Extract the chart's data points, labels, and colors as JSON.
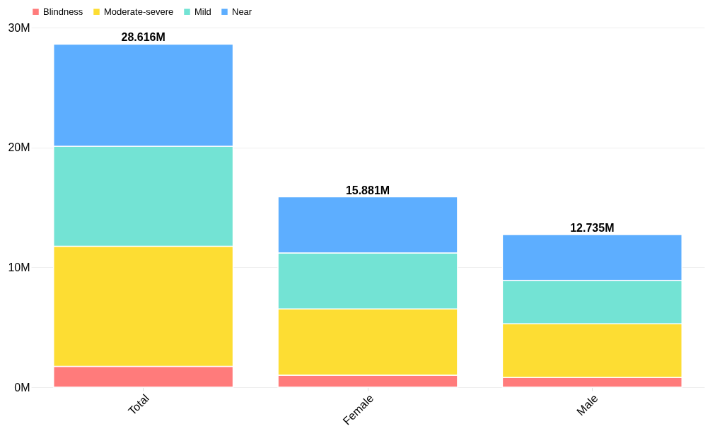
{
  "chart_data": {
    "type": "bar",
    "stacked": true,
    "categories": [
      "Total",
      "Female",
      "Male"
    ],
    "series": [
      {
        "name": "Blindness",
        "color": "#ff7b7b",
        "values": [
          1.74,
          1.0,
          0.81
        ]
      },
      {
        "name": "Moderate-severe",
        "color": "#fddd33",
        "values": [
          10.02,
          5.53,
          4.48
        ]
      },
      {
        "name": "Mild",
        "color": "#73e3d4",
        "values": [
          8.34,
          4.67,
          3.61
        ]
      },
      {
        "name": "Near",
        "color": "#5daeff",
        "values": [
          8.516,
          4.681,
          3.835
        ]
      }
    ],
    "ylim": [
      0,
      30
    ],
    "yticks": [
      {
        "value": 0,
        "label": "0M"
      },
      {
        "value": 10,
        "label": "10M"
      },
      {
        "value": 20,
        "label": "20M"
      },
      {
        "value": 30,
        "label": "30M"
      }
    ],
    "totals": [
      "28.616M",
      "15.881M",
      "12.735M"
    ],
    "grid": "y",
    "legend": "top left"
  }
}
